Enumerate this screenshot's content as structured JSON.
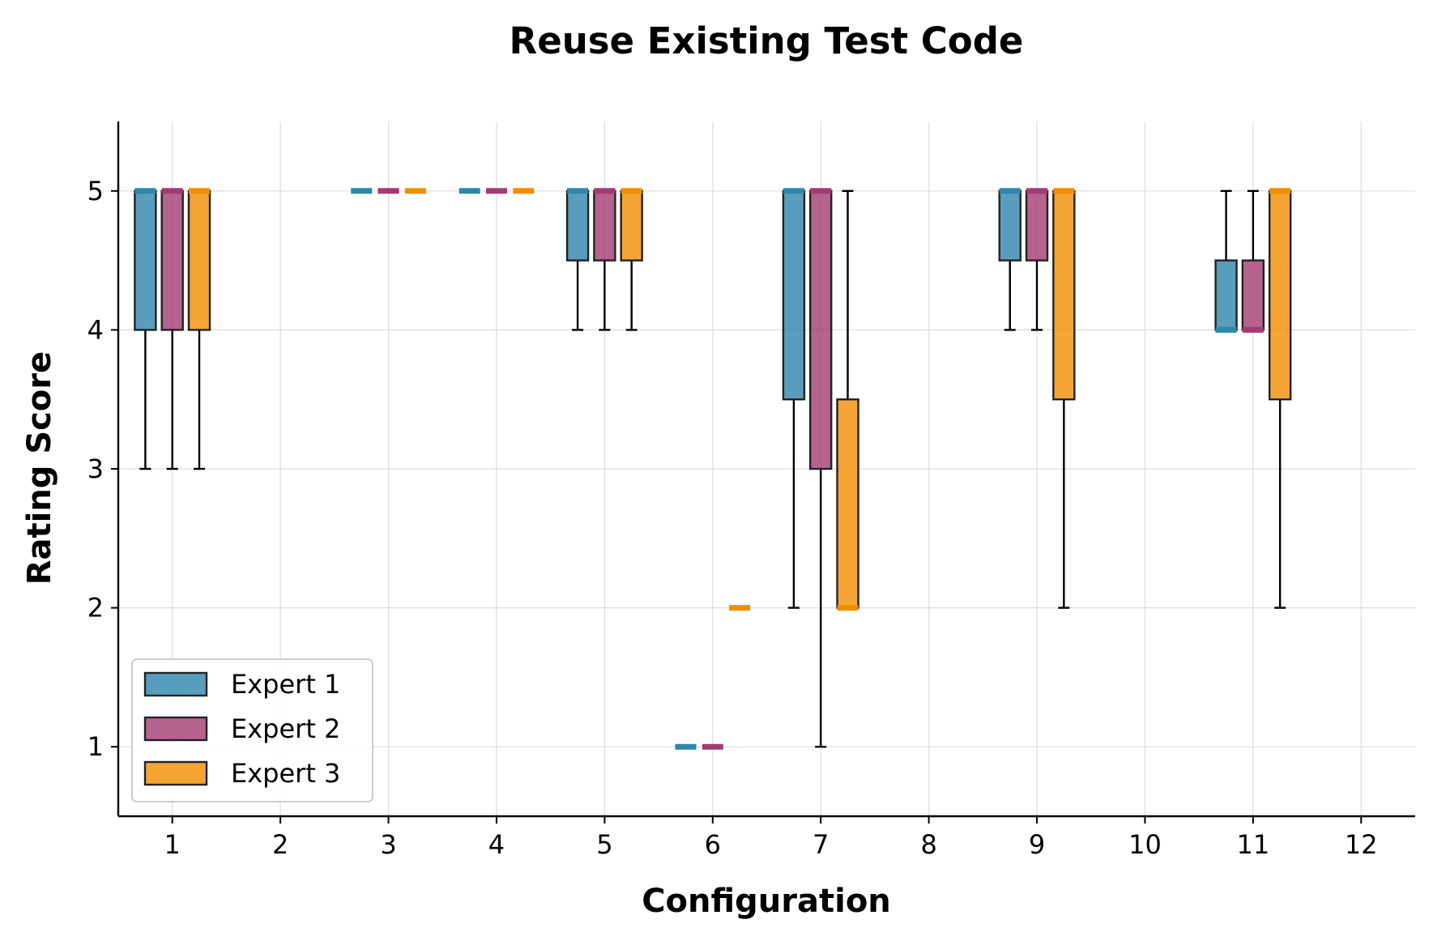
{
  "chart_data": {
    "type": "box",
    "title": "Reuse Existing Test Code",
    "xlabel": "Configuration",
    "ylabel": "Rating Score",
    "categories": [
      1,
      2,
      3,
      4,
      5,
      6,
      7,
      8,
      9,
      10,
      11,
      12
    ],
    "category_labels": [
      "1",
      "2",
      "3",
      "4",
      "5",
      "6",
      "7",
      "8",
      "9",
      "10",
      "11",
      "12"
    ],
    "yticks": [
      1,
      2,
      3,
      4,
      5
    ],
    "ylim": [
      0.5,
      5.5
    ],
    "xlim": [
      0.5,
      12.5
    ],
    "grid": true,
    "legend_position": "lower-left",
    "series": [
      {
        "name": "Expert 1",
        "color": "#2E86AB",
        "boxes": [
          {
            "config": 1,
            "whislo": 3,
            "q1": 4,
            "med": 5,
            "q3": 5,
            "whishi": 5
          },
          {
            "config": 3,
            "whislo": 5,
            "q1": 5,
            "med": 5,
            "q3": 5,
            "whishi": 5
          },
          {
            "config": 4,
            "whislo": 5,
            "q1": 5,
            "med": 5,
            "q3": 5,
            "whishi": 5
          },
          {
            "config": 5,
            "whislo": 4,
            "q1": 4.5,
            "med": 5,
            "q3": 5,
            "whishi": 5
          },
          {
            "config": 6,
            "whislo": 1,
            "q1": 1,
            "med": 1,
            "q3": 1,
            "whishi": 1
          },
          {
            "config": 7,
            "whislo": 2,
            "q1": 3.5,
            "med": 5,
            "q3": 5,
            "whishi": 5
          },
          {
            "config": 9,
            "whislo": 4,
            "q1": 4.5,
            "med": 5,
            "q3": 5,
            "whishi": 5
          },
          {
            "config": 11,
            "whislo": 4,
            "q1": 4,
            "med": 4,
            "q3": 4.5,
            "whishi": 5
          }
        ]
      },
      {
        "name": "Expert 2",
        "color": "#A23B72",
        "boxes": [
          {
            "config": 1,
            "whislo": 3,
            "q1": 4,
            "med": 5,
            "q3": 5,
            "whishi": 5
          },
          {
            "config": 3,
            "whislo": 5,
            "q1": 5,
            "med": 5,
            "q3": 5,
            "whishi": 5
          },
          {
            "config": 4,
            "whislo": 5,
            "q1": 5,
            "med": 5,
            "q3": 5,
            "whishi": 5
          },
          {
            "config": 5,
            "whislo": 4,
            "q1": 4.5,
            "med": 5,
            "q3": 5,
            "whishi": 5
          },
          {
            "config": 6,
            "whislo": 1,
            "q1": 1,
            "med": 1,
            "q3": 1,
            "whishi": 1
          },
          {
            "config": 7,
            "whislo": 1,
            "q1": 3,
            "med": 5,
            "q3": 5,
            "whishi": 5
          },
          {
            "config": 9,
            "whislo": 4,
            "q1": 4.5,
            "med": 5,
            "q3": 5,
            "whishi": 5
          },
          {
            "config": 11,
            "whislo": 4,
            "q1": 4,
            "med": 4,
            "q3": 4.5,
            "whishi": 5
          }
        ]
      },
      {
        "name": "Expert 3",
        "color": "#F18F01",
        "boxes": [
          {
            "config": 1,
            "whislo": 3,
            "q1": 4,
            "med": 5,
            "q3": 5,
            "whishi": 5
          },
          {
            "config": 3,
            "whislo": 5,
            "q1": 5,
            "med": 5,
            "q3": 5,
            "whishi": 5
          },
          {
            "config": 4,
            "whislo": 5,
            "q1": 5,
            "med": 5,
            "q3": 5,
            "whishi": 5
          },
          {
            "config": 5,
            "whislo": 4,
            "q1": 4.5,
            "med": 5,
            "q3": 5,
            "whishi": 5
          },
          {
            "config": 6,
            "whislo": 2,
            "q1": 2,
            "med": 2,
            "q3": 2,
            "whishi": 2
          },
          {
            "config": 7,
            "whislo": 2,
            "q1": 2,
            "med": 2,
            "q3": 3.5,
            "whishi": 5
          },
          {
            "config": 9,
            "whislo": 2,
            "q1": 3.5,
            "med": 5,
            "q3": 5,
            "whishi": 5
          },
          {
            "config": 11,
            "whislo": 2,
            "q1": 3.5,
            "med": 5,
            "q3": 5,
            "whishi": 5
          }
        ]
      }
    ]
  }
}
